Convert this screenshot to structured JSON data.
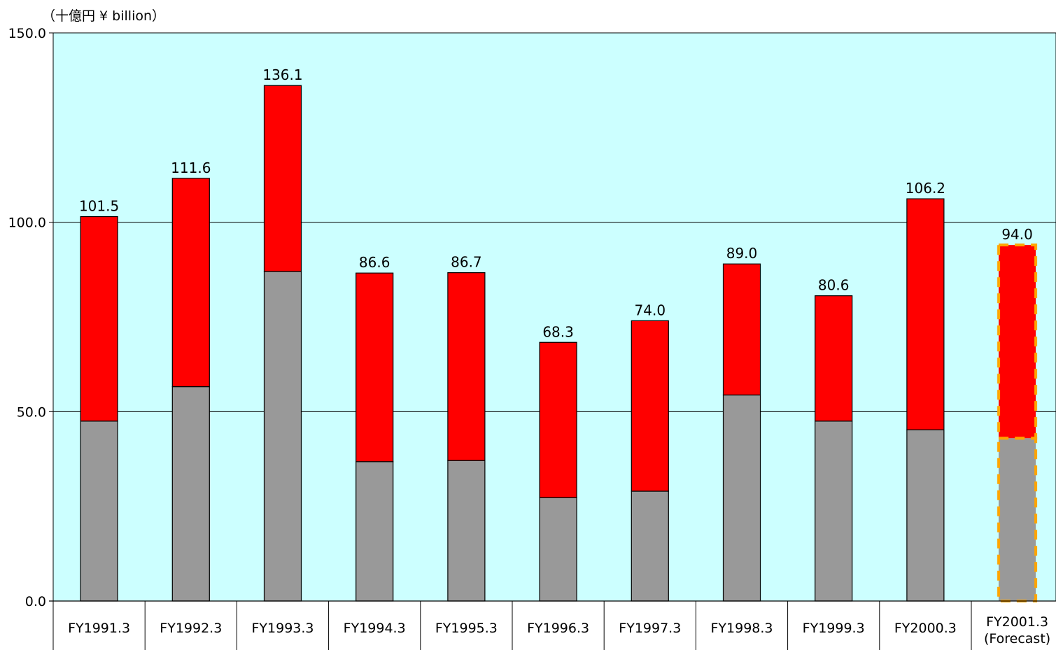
{
  "chart_data": {
    "type": "bar",
    "stacked": true,
    "title": "",
    "ylabel": "（十億円 ¥ billion）",
    "xlabel": "",
    "ylim": [
      0,
      150
    ],
    "yticks": [
      "0.0",
      "50.0",
      "100.0",
      "150.0"
    ],
    "grid": true,
    "legend": "none",
    "categories": [
      [
        "FY1991.3"
      ],
      [
        "FY1992.3"
      ],
      [
        "FY1993.3"
      ],
      [
        "FY1994.3"
      ],
      [
        "FY1995.3"
      ],
      [
        "FY1996.3"
      ],
      [
        "FY1997.3"
      ],
      [
        "FY1998.3"
      ],
      [
        "FY1999.3"
      ],
      [
        "FY2000.3"
      ],
      [
        "FY2001.3",
        "(Forecast)"
      ]
    ],
    "series": [
      {
        "values": [
          47.5,
          56.6,
          87.0,
          36.8,
          37.1,
          27.3,
          29.0,
          54.4,
          47.5,
          45.2,
          43.0
        ],
        "color": "#999999"
      },
      {
        "values": [
          54.0,
          55.0,
          49.1,
          49.8,
          49.6,
          41.0,
          45.0,
          34.6,
          33.1,
          61.0,
          51.0
        ],
        "color": "#ff0000"
      }
    ],
    "totals": [
      "101.5",
      "111.6",
      "136.1",
      "86.6",
      "86.7",
      "68.3",
      "74.0",
      "89.0",
      "80.6",
      "106.2",
      "94.0"
    ],
    "forecast_index": 10,
    "forecast_outline_color": "#ffa500",
    "plot_background": "#ccffff"
  }
}
